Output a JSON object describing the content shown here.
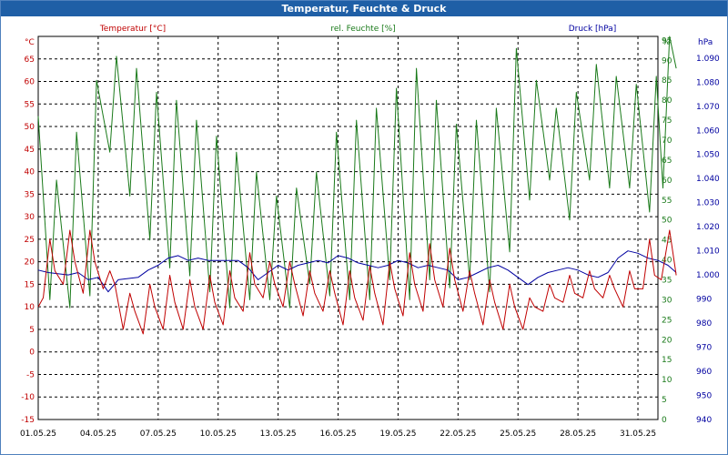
{
  "window": {
    "title": "Temperatur, Feuchte & Druck"
  },
  "chart_data": {
    "type": "line",
    "title": "Temperatur, Feuchte & Druck",
    "grid": true,
    "x": {
      "unit": "date",
      "start": "01.05.25",
      "end": "01.06.25",
      "tick_labels": [
        "01.05.25",
        "04.05.25",
        "07.05.25",
        "10.05.25",
        "13.05.25",
        "16.05.25",
        "19.05.25",
        "22.05.25",
        "25.05.25",
        "28.05.25",
        "31.05.25"
      ]
    },
    "axes": {
      "temperature": {
        "unit_label": "°C",
        "range": [
          -15,
          70
        ],
        "ticks": [
          -15,
          -10,
          -5,
          0,
          5,
          10,
          15,
          20,
          25,
          30,
          35,
          40,
          45,
          50,
          55,
          60,
          65
        ],
        "color": "#c00000"
      },
      "humidity": {
        "unit_label": "%",
        "range": [
          0,
          96
        ],
        "ticks": [
          0,
          5,
          10,
          15,
          20,
          25,
          30,
          35,
          40,
          45,
          50,
          55,
          60,
          65,
          70,
          75,
          80,
          85,
          90,
          95
        ],
        "color": "#1a7a1a"
      },
      "pressure": {
        "unit_label": "hPa",
        "range": [
          940,
          1099
        ],
        "ticks": [
          940,
          950,
          960,
          970,
          980,
          990,
          1000,
          1010,
          1020,
          1030,
          1040,
          1050,
          1060,
          1070,
          1080,
          1090
        ],
        "color": "#0000a0"
      }
    },
    "series": [
      {
        "name": "Temperatur [°C]",
        "axis": "temperature",
        "color": "#c00000",
        "points": [
          [
            "01.05.25 00:00",
            10
          ],
          [
            "01.05.25 06:00",
            12
          ],
          [
            "01.05.25 14:00",
            25
          ],
          [
            "01.05.25 20:00",
            18
          ],
          [
            "02.05.25 06:00",
            15
          ],
          [
            "02.05.25 14:00",
            27
          ],
          [
            "02.05.25 20:00",
            20
          ],
          [
            "03.05.25 06:00",
            13
          ],
          [
            "03.05.25 14:00",
            27
          ],
          [
            "03.05.25 20:00",
            20
          ],
          [
            "04.05.25 06:00",
            14
          ],
          [
            "04.05.25 14:00",
            18
          ],
          [
            "04.05.25 20:00",
            15
          ],
          [
            "05.05.25 06:00",
            5
          ],
          [
            "05.05.25 14:00",
            13
          ],
          [
            "05.05.25 20:00",
            9
          ],
          [
            "06.05.25 06:00",
            4
          ],
          [
            "06.05.25 14:00",
            15
          ],
          [
            "06.05.25 20:00",
            10
          ],
          [
            "07.05.25 06:00",
            5
          ],
          [
            "07.05.25 14:00",
            17
          ],
          [
            "07.05.25 20:00",
            11
          ],
          [
            "08.05.25 06:00",
            5
          ],
          [
            "08.05.25 14:00",
            16
          ],
          [
            "08.05.25 20:00",
            10
          ],
          [
            "09.05.25 06:00",
            5
          ],
          [
            "09.05.25 14:00",
            17
          ],
          [
            "09.05.25 20:00",
            11
          ],
          [
            "10.05.25 06:00",
            6
          ],
          [
            "10.05.25 14:00",
            18
          ],
          [
            "10.05.25 20:00",
            12
          ],
          [
            "11.05.25 06:00",
            9
          ],
          [
            "11.05.25 14:00",
            22
          ],
          [
            "11.05.25 20:00",
            15
          ],
          [
            "12.05.25 06:00",
            12
          ],
          [
            "12.05.25 14:00",
            20
          ],
          [
            "12.05.25 20:00",
            15
          ],
          [
            "13.05.25 06:00",
            10
          ],
          [
            "13.05.25 14:00",
            20
          ],
          [
            "13.05.25 20:00",
            15
          ],
          [
            "14.05.25 06:00",
            8
          ],
          [
            "14.05.25 14:00",
            18
          ],
          [
            "14.05.25 20:00",
            13
          ],
          [
            "15.05.25 06:00",
            9
          ],
          [
            "15.05.25 14:00",
            18
          ],
          [
            "15.05.25 20:00",
            13
          ],
          [
            "16.05.25 06:00",
            6
          ],
          [
            "16.05.25 14:00",
            18
          ],
          [
            "16.05.25 20:00",
            12
          ],
          [
            "17.05.25 06:00",
            7
          ],
          [
            "17.05.25 14:00",
            19
          ],
          [
            "17.05.25 20:00",
            13
          ],
          [
            "18.05.25 06:00",
            6
          ],
          [
            "18.05.25 14:00",
            20
          ],
          [
            "18.05.25 20:00",
            14
          ],
          [
            "19.05.25 06:00",
            8
          ],
          [
            "19.05.25 14:00",
            22
          ],
          [
            "19.05.25 20:00",
            15
          ],
          [
            "20.05.25 06:00",
            9
          ],
          [
            "20.05.25 14:00",
            24
          ],
          [
            "20.05.25 20:00",
            16
          ],
          [
            "21.05.25 06:00",
            10
          ],
          [
            "21.05.25 14:00",
            23
          ],
          [
            "21.05.25 20:00",
            16
          ],
          [
            "22.05.25 06:00",
            9
          ],
          [
            "22.05.25 14:00",
            18
          ],
          [
            "22.05.25 20:00",
            13
          ],
          [
            "23.05.25 06:00",
            6
          ],
          [
            "23.05.25 14:00",
            16
          ],
          [
            "23.05.25 20:00",
            11
          ],
          [
            "24.05.25 06:00",
            5
          ],
          [
            "24.05.25 14:00",
            15
          ],
          [
            "24.05.25 20:00",
            10
          ],
          [
            "25.05.25 06:00",
            5
          ],
          [
            "25.05.25 14:00",
            12
          ],
          [
            "25.05.25 20:00",
            10
          ],
          [
            "26.05.25 06:00",
            9
          ],
          [
            "26.05.25 14:00",
            15
          ],
          [
            "26.05.25 20:00",
            12
          ],
          [
            "27.05.25 06:00",
            11
          ],
          [
            "27.05.25 14:00",
            17
          ],
          [
            "27.05.25 20:00",
            13
          ],
          [
            "28.05.25 06:00",
            12
          ],
          [
            "28.05.25 14:00",
            18
          ],
          [
            "28.05.25 20:00",
            14
          ],
          [
            "29.05.25 06:00",
            12
          ],
          [
            "29.05.25 14:00",
            17
          ],
          [
            "29.05.25 20:00",
            14
          ],
          [
            "30.05.25 06:00",
            10
          ],
          [
            "30.05.25 14:00",
            18
          ],
          [
            "30.05.25 20:00",
            14
          ],
          [
            "31.05.25 06:00",
            14
          ],
          [
            "31.05.25 14:00",
            25
          ],
          [
            "31.05.25 20:00",
            17
          ],
          [
            "01.06.25 04:00",
            16
          ],
          [
            "01.06.25 14:00",
            27
          ],
          [
            "01.06.25 22:00",
            17
          ]
        ]
      },
      {
        "name": "rel. Feuchte [%]",
        "axis": "humidity",
        "color": "#1a7a1a",
        "points": [
          [
            "01.05.25 00:00",
            76
          ],
          [
            "01.05.25 14:00",
            30
          ],
          [
            "01.05.25 22:00",
            60
          ],
          [
            "02.05.25 14:00",
            28
          ],
          [
            "02.05.25 22:00",
            72
          ],
          [
            "03.05.25 14:00",
            31
          ],
          [
            "03.05.25 22:00",
            85
          ],
          [
            "04.05.25 14:00",
            67
          ],
          [
            "04.05.25 22:00",
            91
          ],
          [
            "05.05.25 14:00",
            56
          ],
          [
            "05.05.25 22:00",
            88
          ],
          [
            "06.05.25 14:00",
            45
          ],
          [
            "06.05.25 22:00",
            82
          ],
          [
            "07.05.25 14:00",
            38
          ],
          [
            "07.05.25 22:00",
            80
          ],
          [
            "08.05.25 14:00",
            36
          ],
          [
            "08.05.25 22:00",
            75
          ],
          [
            "09.05.25 14:00",
            32
          ],
          [
            "09.05.25 22:00",
            71
          ],
          [
            "10.05.25 14:00",
            28
          ],
          [
            "10.05.25 22:00",
            67
          ],
          [
            "11.05.25 14:00",
            30
          ],
          [
            "11.05.25 22:00",
            62
          ],
          [
            "12.05.25 14:00",
            30
          ],
          [
            "12.05.25 22:00",
            56
          ],
          [
            "13.05.25 14:00",
            28
          ],
          [
            "13.05.25 22:00",
            58
          ],
          [
            "14.05.25 14:00",
            34
          ],
          [
            "14.05.25 22:00",
            62
          ],
          [
            "15.05.25 14:00",
            31
          ],
          [
            "15.05.25 22:00",
            72
          ],
          [
            "16.05.25 14:00",
            30
          ],
          [
            "16.05.25 22:00",
            75
          ],
          [
            "17.05.25 14:00",
            30
          ],
          [
            "17.05.25 22:00",
            78
          ],
          [
            "18.05.25 14:00",
            35
          ],
          [
            "18.05.25 22:00",
            83
          ],
          [
            "19.05.25 14:00",
            30
          ],
          [
            "19.05.25 22:00",
            88
          ],
          [
            "20.05.25 14:00",
            35
          ],
          [
            "20.05.25 22:00",
            80
          ],
          [
            "21.05.25 14:00",
            33
          ],
          [
            "21.05.25 22:00",
            74
          ],
          [
            "22.05.25 14:00",
            35
          ],
          [
            "22.05.25 22:00",
            75
          ],
          [
            "23.05.25 14:00",
            32
          ],
          [
            "23.05.25 22:00",
            78
          ],
          [
            "24.05.25 14:00",
            42
          ],
          [
            "24.05.25 22:00",
            93
          ],
          [
            "25.05.25 14:00",
            55
          ],
          [
            "25.05.25 22:00",
            85
          ],
          [
            "26.05.25 14:00",
            60
          ],
          [
            "26.05.25 22:00",
            78
          ],
          [
            "27.05.25 14:00",
            50
          ],
          [
            "27.05.25 22:00",
            82
          ],
          [
            "28.05.25 14:00",
            60
          ],
          [
            "28.05.25 22:00",
            89
          ],
          [
            "29.05.25 14:00",
            58
          ],
          [
            "29.05.25 22:00",
            86
          ],
          [
            "30.05.25 14:00",
            58
          ],
          [
            "30.05.25 22:00",
            84
          ],
          [
            "31.05.25 14:00",
            52
          ],
          [
            "31.05.25 22:00",
            86
          ],
          [
            "01.06.25 06:00",
            58
          ],
          [
            "01.06.25 14:00",
            96
          ],
          [
            "01.06.25 22:00",
            88
          ]
        ]
      },
      {
        "name": "Druck [hPa]",
        "axis": "pressure",
        "color": "#0000a0",
        "points": [
          [
            "01.05.25 00:00",
            1002
          ],
          [
            "01.05.25 12:00",
            1001
          ],
          [
            "02.05.25 12:00",
            1000
          ],
          [
            "03.05.25 00:00",
            1001
          ],
          [
            "03.05.25 12:00",
            998
          ],
          [
            "04.05.25 00:00",
            999
          ],
          [
            "04.05.25 12:00",
            993
          ],
          [
            "05.05.25 00:00",
            998
          ],
          [
            "06.05.25 00:00",
            999
          ],
          [
            "06.05.25 12:00",
            1002
          ],
          [
            "07.05.25 00:00",
            1004
          ],
          [
            "07.05.25 12:00",
            1007
          ],
          [
            "08.05.25 00:00",
            1008
          ],
          [
            "08.05.25 12:00",
            1006
          ],
          [
            "09.05.25 00:00",
            1007
          ],
          [
            "09.05.25 12:00",
            1006
          ],
          [
            "10.05.25 00:00",
            1006
          ],
          [
            "10.05.25 12:00",
            1006
          ],
          [
            "11.05.25 00:00",
            1006
          ],
          [
            "11.05.25 12:00",
            1003
          ],
          [
            "12.05.25 00:00",
            998
          ],
          [
            "12.05.25 12:00",
            1001
          ],
          [
            "13.05.25 00:00",
            1004
          ],
          [
            "13.05.25 12:00",
            1002
          ],
          [
            "14.05.25 00:00",
            1004
          ],
          [
            "14.05.25 12:00",
            1005
          ],
          [
            "15.05.25 00:00",
            1006
          ],
          [
            "15.05.25 12:00",
            1005
          ],
          [
            "16.05.25 00:00",
            1008
          ],
          [
            "16.05.25 12:00",
            1007
          ],
          [
            "17.05.25 00:00",
            1005
          ],
          [
            "17.05.25 12:00",
            1004
          ],
          [
            "18.05.25 00:00",
            1003
          ],
          [
            "18.05.25 12:00",
            1004
          ],
          [
            "19.05.25 00:00",
            1006
          ],
          [
            "19.05.25 12:00",
            1005
          ],
          [
            "20.05.25 00:00",
            1003
          ],
          [
            "20.05.25 12:00",
            1004
          ],
          [
            "21.05.25 00:00",
            1003
          ],
          [
            "21.05.25 12:00",
            1002
          ],
          [
            "22.05.25 00:00",
            998
          ],
          [
            "22.05.25 12:00",
            999
          ],
          [
            "23.05.25 00:00",
            1001
          ],
          [
            "23.05.25 12:00",
            1003
          ],
          [
            "24.05.25 00:00",
            1004
          ],
          [
            "24.05.25 12:00",
            1002
          ],
          [
            "25.05.25 00:00",
            999
          ],
          [
            "25.05.25 12:00",
            996
          ],
          [
            "26.05.25 00:00",
            999
          ],
          [
            "26.05.25 12:00",
            1001
          ],
          [
            "27.05.25 00:00",
            1002
          ],
          [
            "27.05.25 12:00",
            1003
          ],
          [
            "28.05.25 00:00",
            1002
          ],
          [
            "28.05.25 12:00",
            1000
          ],
          [
            "29.05.25 00:00",
            999
          ],
          [
            "29.05.25 12:00",
            1001
          ],
          [
            "30.05.25 00:00",
            1007
          ],
          [
            "30.05.25 12:00",
            1010
          ],
          [
            "31.05.25 00:00",
            1009
          ],
          [
            "31.05.25 12:00",
            1007
          ],
          [
            "01.06.25 00:00",
            1006
          ],
          [
            "01.06.25 12:00",
            1004
          ],
          [
            "01.06.25 22:00",
            1001
          ]
        ]
      }
    ]
  }
}
